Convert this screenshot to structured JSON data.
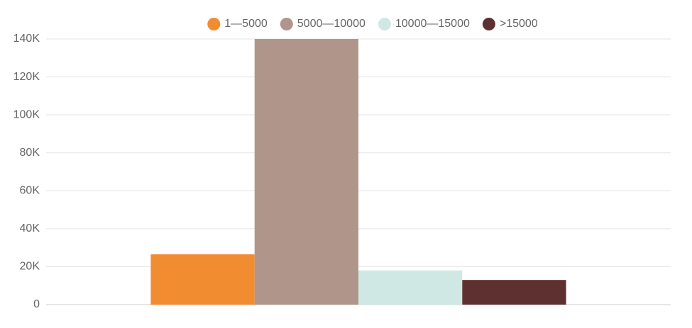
{
  "chart_data": {
    "type": "bar",
    "categories": [
      null
    ],
    "series": [
      {
        "name": "1—5000",
        "color": "#f28c30",
        "values": [
          26500
        ]
      },
      {
        "name": "5000—10000",
        "color": "#b0968a",
        "values": [
          140000
        ]
      },
      {
        "name": "10000—15000",
        "color": "#cfe8e3",
        "values": [
          18000
        ]
      },
      {
        "name": ">15000",
        "color": "#5e3130",
        "values": [
          13000
        ]
      }
    ],
    "ylim": [
      0,
      140000
    ],
    "yticks": [
      0,
      {
        "value": 20000,
        "label": "20K"
      },
      {
        "value": 40000,
        "label": "40K"
      },
      {
        "value": 60000,
        "label": "60K"
      },
      {
        "value": 80000,
        "label": "80K"
      },
      {
        "value": 100000,
        "label": "100K"
      },
      {
        "value": 120000,
        "label": "120K"
      },
      {
        "value": 140000,
        "label": "140K"
      }
    ],
    "grid": true,
    "legend": "top"
  }
}
